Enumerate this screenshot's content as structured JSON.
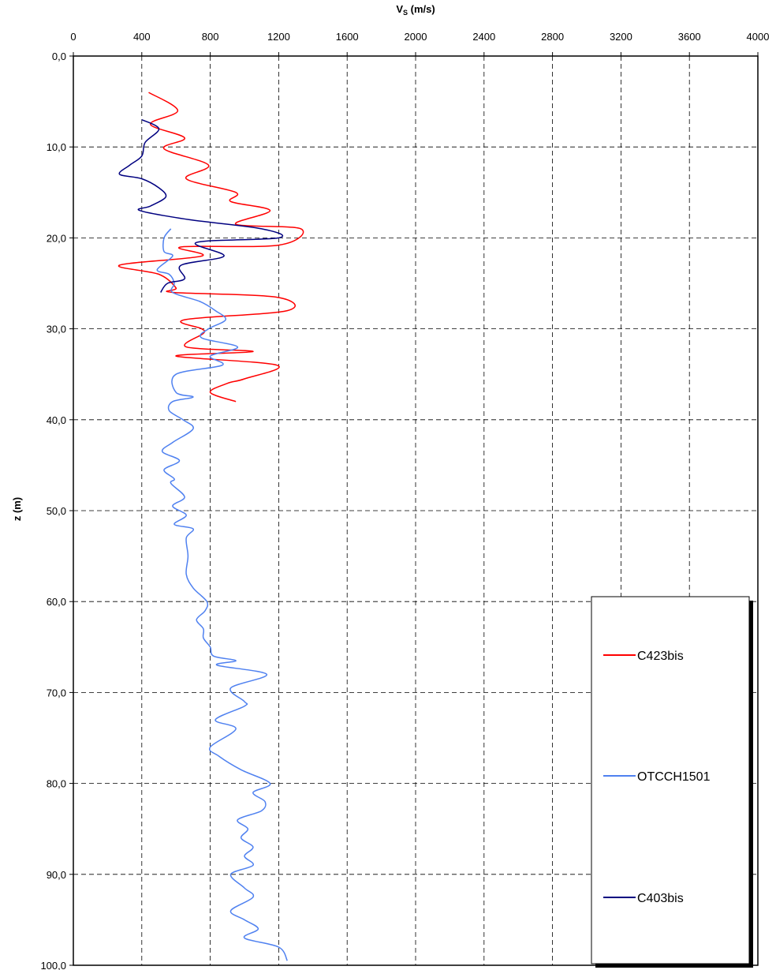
{
  "chart_data": {
    "type": "line",
    "title": "",
    "xlabel": "V_S (m/s)",
    "xlabel_main": "V",
    "xlabel_sub": "S",
    "xlabel_unit": " (m/s)",
    "ylabel": "z (m)",
    "xlim": [
      0,
      4000
    ],
    "ylim": [
      0,
      100
    ],
    "y_inverted": true,
    "x_axis_position": "top",
    "x_ticks": [
      0,
      400,
      800,
      1200,
      1600,
      2000,
      2400,
      2800,
      3200,
      3600,
      4000
    ],
    "x_tick_labels": [
      "0",
      "400",
      "800",
      "1200",
      "1600",
      "2000",
      "2400",
      "2800",
      "3200",
      "3600",
      "4000"
    ],
    "y_ticks": [
      0,
      10,
      20,
      30,
      40,
      50,
      60,
      70,
      80,
      90,
      100
    ],
    "y_tick_labels": [
      "0,0",
      "10,0",
      "20,0",
      "30,0",
      "40,0",
      "50,0",
      "60,0",
      "70,0",
      "80,0",
      "90,0",
      "100,0"
    ],
    "grid": true,
    "grid_style": "dashed",
    "legend_position": "bottom-right",
    "series": [
      {
        "name": "C423bis",
        "color": "#ff0000",
        "points": [
          [
            440,
            4
          ],
          [
            610,
            6
          ],
          [
            450,
            7.5
          ],
          [
            650,
            9
          ],
          [
            530,
            10.2
          ],
          [
            790,
            12
          ],
          [
            660,
            13.5
          ],
          [
            950,
            15
          ],
          [
            920,
            16
          ],
          [
            1150,
            17
          ],
          [
            950,
            18.5
          ],
          [
            1330,
            19
          ],
          [
            1200,
            20.8
          ],
          [
            630,
            21
          ],
          [
            750,
            22
          ],
          [
            270,
            23
          ],
          [
            500,
            24
          ],
          [
            600,
            25.5
          ],
          [
            580,
            26
          ],
          [
            1180,
            26.5
          ],
          [
            1250,
            28
          ],
          [
            650,
            29
          ],
          [
            750,
            30
          ],
          [
            760,
            30.5
          ],
          [
            660,
            32
          ],
          [
            1050,
            32.5
          ],
          [
            600,
            33
          ],
          [
            1190,
            34
          ],
          [
            1000,
            35.5
          ],
          [
            900,
            36
          ],
          [
            800,
            37
          ],
          [
            950,
            38
          ]
        ]
      },
      {
        "name": "OTCCH1501",
        "color": "#4f81f0",
        "points": [
          [
            570,
            19
          ],
          [
            530,
            20
          ],
          [
            530,
            21.5
          ],
          [
            580,
            22
          ],
          [
            490,
            23.5
          ],
          [
            560,
            24
          ],
          [
            590,
            25
          ],
          [
            580,
            26
          ],
          [
            740,
            27
          ],
          [
            830,
            28
          ],
          [
            890,
            29
          ],
          [
            790,
            30
          ],
          [
            750,
            31
          ],
          [
            960,
            32
          ],
          [
            800,
            33
          ],
          [
            870,
            34
          ],
          [
            600,
            35
          ],
          [
            600,
            37
          ],
          [
            700,
            37.5
          ],
          [
            580,
            38
          ],
          [
            560,
            39
          ],
          [
            640,
            40
          ],
          [
            700,
            41
          ],
          [
            580,
            42.5
          ],
          [
            520,
            43.5
          ],
          [
            620,
            44.5
          ],
          [
            530,
            45.5
          ],
          [
            590,
            46.5
          ],
          [
            570,
            47
          ],
          [
            650,
            48.5
          ],
          [
            580,
            49.5
          ],
          [
            660,
            50.5
          ],
          [
            590,
            51.5
          ],
          [
            700,
            52
          ],
          [
            660,
            53
          ],
          [
            670,
            55
          ],
          [
            660,
            57
          ],
          [
            700,
            58.5
          ],
          [
            780,
            60
          ],
          [
            770,
            61
          ],
          [
            720,
            62
          ],
          [
            760,
            63
          ],
          [
            760,
            64
          ],
          [
            800,
            65
          ],
          [
            820,
            66
          ],
          [
            950,
            66.5
          ],
          [
            840,
            67
          ],
          [
            1130,
            68
          ],
          [
            920,
            69.5
          ],
          [
            1000,
            71
          ],
          [
            1000,
            71.5
          ],
          [
            830,
            73
          ],
          [
            950,
            74
          ],
          [
            800,
            76
          ],
          [
            850,
            77
          ],
          [
            980,
            78.5
          ],
          [
            1150,
            80
          ],
          [
            1050,
            81
          ],
          [
            1120,
            82
          ],
          [
            1100,
            83
          ],
          [
            960,
            84
          ],
          [
            1020,
            85
          ],
          [
            980,
            86
          ],
          [
            1050,
            87
          ],
          [
            1000,
            88
          ],
          [
            1050,
            89
          ],
          [
            920,
            90
          ],
          [
            1000,
            91.5
          ],
          [
            1050,
            92.5
          ],
          [
            920,
            94
          ],
          [
            1000,
            95
          ],
          [
            1080,
            96
          ],
          [
            1000,
            97
          ],
          [
            1200,
            98
          ],
          [
            1250,
            99.5
          ]
        ]
      },
      {
        "name": "C403bis",
        "color": "#000080",
        "points": [
          [
            400,
            7
          ],
          [
            500,
            8
          ],
          [
            420,
            9.5
          ],
          [
            400,
            11
          ],
          [
            330,
            12
          ],
          [
            270,
            13
          ],
          [
            400,
            13.5
          ],
          [
            500,
            14.5
          ],
          [
            540,
            15.5
          ],
          [
            450,
            16.5
          ],
          [
            390,
            17
          ],
          [
            680,
            18
          ],
          [
            1100,
            19
          ],
          [
            1200,
            20
          ],
          [
            720,
            20.5
          ],
          [
            880,
            22
          ],
          [
            630,
            23
          ],
          [
            650,
            24.5
          ],
          [
            550,
            25
          ],
          [
            510,
            26
          ]
        ]
      }
    ]
  }
}
